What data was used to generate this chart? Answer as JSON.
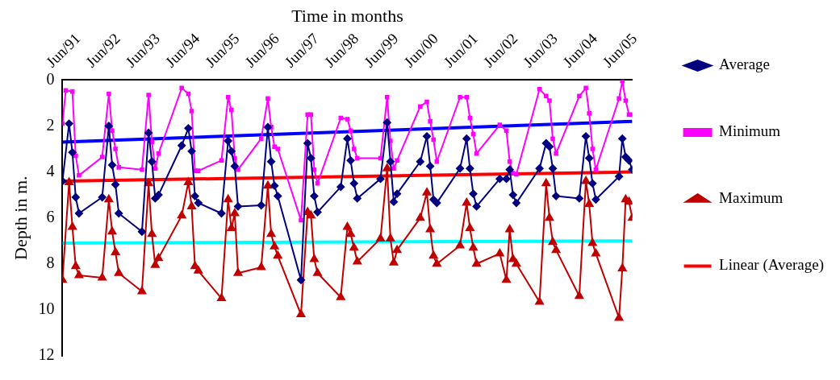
{
  "chart_data": {
    "type": "line",
    "xlabel": "Time in months",
    "ylabel": "Depth in m.",
    "x": [
      "1991-06",
      "1991-08",
      "1991-09",
      "1991-10",
      "1991-11",
      "1992-06",
      "1992-08",
      "1992-09",
      "1992-10",
      "1992-11",
      "1993-06",
      "1993-08",
      "1993-09",
      "1993-10",
      "1993-11",
      "1994-06",
      "1994-08",
      "1994-09",
      "1994-10",
      "1994-11",
      "1995-06",
      "1995-08",
      "1995-09",
      "1995-10",
      "1995-11",
      "1996-06",
      "1996-08",
      "1996-09",
      "1996-10",
      "1996-11",
      "1997-06",
      "1997-08",
      "1997-09",
      "1997-10",
      "1997-11",
      "1998-06",
      "1998-08",
      "1998-09",
      "1998-10",
      "1998-11",
      "1999-06",
      "1999-08",
      "1999-09",
      "1999-10",
      "1999-11",
      "2000-06",
      "2000-08",
      "2000-09",
      "2000-10",
      "2000-11",
      "2001-06",
      "2001-08",
      "2001-09",
      "2001-10",
      "2001-11",
      "2002-06",
      "2002-08",
      "2002-09",
      "2002-10",
      "2002-11",
      "2003-06",
      "2003-08",
      "2003-09",
      "2003-10",
      "2003-11",
      "2004-06",
      "2004-08",
      "2004-09",
      "2004-10",
      "2004-11",
      "2005-06",
      "2005-07",
      "2005-08",
      "2005-09",
      "2005-10"
    ],
    "series": [
      {
        "name": "Average",
        "color": "#000080",
        "marker": "diamond",
        "values": [
          4.4,
          1.9,
          3.15,
          5.1,
          5.8,
          5.1,
          2.0,
          3.7,
          4.55,
          5.8,
          6.6,
          2.3,
          3.55,
          5.15,
          5.0,
          2.85,
          2.1,
          3.1,
          5.05,
          5.35,
          5.8,
          2.65,
          3.1,
          3.75,
          5.5,
          5.45,
          2.05,
          3.55,
          4.6,
          5.05,
          8.7,
          2.75,
          3.4,
          5.05,
          5.75,
          4.65,
          2.55,
          3.5,
          4.5,
          5.15,
          4.3,
          1.85,
          3.55,
          5.3,
          4.95,
          3.55,
          2.45,
          3.75,
          5.2,
          5.35,
          3.85,
          2.55,
          3.85,
          4.95,
          5.5,
          4.3,
          4.3,
          3.9,
          5.0,
          5.35,
          3.85,
          2.75,
          2.9,
          3.85,
          5.05,
          5.15,
          2.45,
          3.4,
          4.5,
          5.2,
          4.2,
          2.55,
          3.35,
          3.5,
          3.9
        ]
      },
      {
        "name": "Minimum",
        "color": "#ff00ff",
        "marker": "square",
        "x": [
          "1991-06",
          "1991-07",
          "1991-09",
          "1991-10",
          "1991-11",
          "1992-06",
          "1992-08",
          "1992-09",
          "1992-10",
          "1992-11",
          "1993-06",
          "1993-08",
          "1993-09",
          "1993-10",
          "1993-11",
          "1994-06",
          "1994-08",
          "1994-09",
          "1994-10",
          "1994-11",
          "1995-06",
          "1995-08",
          "1995-09",
          "1995-10",
          "1995-11",
          "1996-06",
          "1996-08",
          "1996-09",
          "1996-10",
          "1996-11",
          "1997-06",
          "1997-08",
          "1997-09",
          "1997-10",
          "1997-11",
          "1998-06",
          "1998-08",
          "1998-09",
          "1998-10",
          "1998-11",
          "1999-06",
          "1999-08",
          "1999-09",
          "1999-10",
          "1999-11",
          "2000-06",
          "2000-08",
          "2000-09",
          "2000-10",
          "2000-11",
          "2001-06",
          "2001-08",
          "2001-09",
          "2001-10",
          "2001-11",
          "2002-06",
          "2002-08",
          "2002-09",
          "2002-10",
          "2002-11",
          "2003-06",
          "2003-08",
          "2003-09",
          "2003-10",
          "2003-11",
          "2004-06",
          "2004-08",
          "2004-09",
          "2004-10",
          "2004-11",
          "2005-06",
          "2005-07",
          "2005-08",
          "2005-09",
          "2005-10"
        ],
        "values": [
          1.9,
          0.45,
          0.5,
          3.3,
          4.15,
          3.35,
          0.6,
          2.2,
          3.0,
          3.8,
          3.9,
          0.65,
          2.7,
          3.85,
          3.2,
          0.35,
          0.6,
          1.35,
          3.95,
          3.95,
          3.5,
          0.75,
          1.3,
          3.4,
          3.9,
          2.55,
          0.8,
          2.05,
          2.9,
          3.0,
          6.1,
          1.5,
          1.5,
          3.9,
          4.5,
          1.65,
          1.7,
          2.2,
          3.0,
          3.4,
          3.4,
          0.75,
          2.65,
          3.85,
          3.5,
          1.15,
          0.95,
          1.8,
          2.6,
          3.55,
          0.75,
          0.75,
          1.65,
          2.35,
          3.2,
          1.95,
          2.2,
          3.55,
          4.05,
          4.1,
          0.4,
          0.7,
          0.9,
          2.55,
          3.2,
          0.7,
          0.35,
          1.45,
          3.0,
          3.9,
          0.8,
          0.05,
          0.9,
          1.5,
          1.5
        ]
      },
      {
        "name": "Maximum",
        "color": "#c00000",
        "marker": "triangle",
        "values": [
          8.7,
          4.45,
          6.4,
          8.1,
          8.5,
          8.6,
          5.2,
          6.6,
          7.5,
          8.4,
          9.2,
          4.5,
          6.7,
          8.05,
          7.75,
          5.9,
          4.45,
          5.5,
          8.1,
          8.3,
          9.5,
          5.2,
          6.45,
          5.8,
          8.4,
          8.15,
          4.6,
          6.7,
          7.25,
          7.65,
          10.2,
          5.75,
          5.9,
          7.8,
          8.4,
          9.45,
          6.4,
          6.7,
          7.3,
          7.9,
          6.9,
          3.85,
          6.9,
          7.95,
          7.4,
          6.0,
          4.9,
          6.5,
          7.65,
          8.0,
          7.2,
          5.35,
          6.45,
          7.3,
          8.0,
          7.55,
          8.7,
          6.5,
          7.8,
          8.0,
          9.65,
          4.5,
          6.0,
          7.05,
          7.4,
          9.4,
          4.4,
          5.4,
          7.1,
          7.55,
          10.35,
          8.2,
          5.2,
          5.3,
          6.0
        ]
      },
      {
        "name": "Linear (Average)",
        "color": "#ff0000",
        "marker": "none",
        "x": [
          "1991-06",
          "2005-10"
        ],
        "values": [
          4.4,
          4.0
        ]
      },
      {
        "color": "#0000ff",
        "marker": "none",
        "x": [
          "1991-06",
          "2005-10"
        ],
        "values": [
          2.7,
          1.8
        ]
      },
      {
        "color": "#00ffff",
        "marker": "none",
        "x": [
          "1991-06",
          "2005-10"
        ],
        "values": [
          7.1,
          7.0
        ]
      }
    ],
    "xlim": [
      "1991-06",
      "2005-10"
    ],
    "xticks": [
      {
        "value": "1991-06",
        "label": "Jun/91"
      },
      {
        "value": "1992-06",
        "label": "Jun/92"
      },
      {
        "value": "1993-06",
        "label": "Jun/93"
      },
      {
        "value": "1994-06",
        "label": "Jun/94"
      },
      {
        "value": "1995-06",
        "label": "Jun/95"
      },
      {
        "value": "1996-06",
        "label": "Jun/96"
      },
      {
        "value": "1997-06",
        "label": "Jun/97"
      },
      {
        "value": "1998-06",
        "label": "Jun/98"
      },
      {
        "value": "1999-06",
        "label": "Jun/99"
      },
      {
        "value": "2000-06",
        "label": "Jun/00"
      },
      {
        "value": "2001-06",
        "label": "Jun/01"
      },
      {
        "value": "2002-06",
        "label": "Jun/02"
      },
      {
        "value": "2003-06",
        "label": "Jun/03"
      },
      {
        "value": "2004-06",
        "label": "Jun/04"
      },
      {
        "value": "2005-06",
        "label": "Jun/05"
      }
    ],
    "ylim": [
      12,
      0
    ],
    "yticks": [
      0,
      2,
      4,
      6,
      8,
      10,
      12
    ],
    "grid": false,
    "legend": "right",
    "line_style": "solid"
  }
}
